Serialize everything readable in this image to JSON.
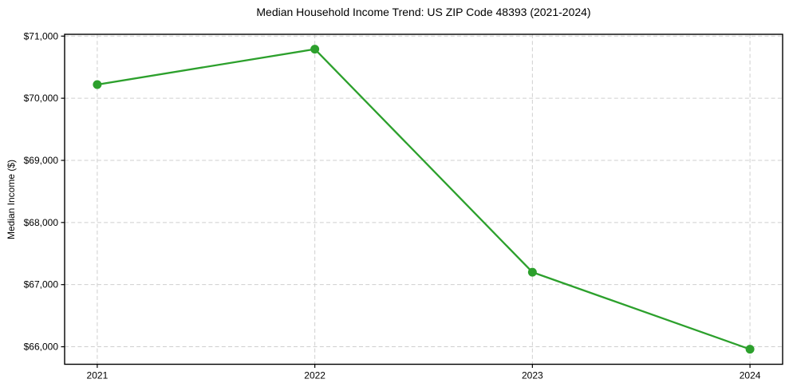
{
  "figure": {
    "background": "#ffffff"
  },
  "chart_data": {
    "type": "line",
    "title": "Median Household Income Trend: US ZIP Code 48393 (2021-2024)",
    "xlabel": "",
    "ylabel": "Median Income ($)",
    "x": [
      2021,
      2022,
      2023,
      2024
    ],
    "x_tick_labels": [
      "2021",
      "2022",
      "2023",
      "2024"
    ],
    "series": [
      {
        "name": "Median Household Income",
        "values": [
          70220,
          70790,
          67200,
          65960
        ]
      }
    ],
    "yticks": [
      66000,
      67000,
      68000,
      69000,
      70000,
      71000
    ],
    "ytick_labels": [
      "$66,000",
      "$67,000",
      "$68,000",
      "$69,000",
      "$70,000",
      "$71,000"
    ],
    "ylim": [
      65718,
      71029
    ],
    "xlim": [
      2020.85,
      2024.15
    ],
    "grid": true,
    "grid_style": "dashed",
    "legend": "none",
    "colors": {
      "line": "#2ca02c",
      "marker": "#2ca02c",
      "grid": "#cfcfcf",
      "spine": "#000000",
      "text": "#000000",
      "background": "#ffffff"
    },
    "marker": "circle",
    "marker_radius": 5.5,
    "line_width": 2.3
  }
}
